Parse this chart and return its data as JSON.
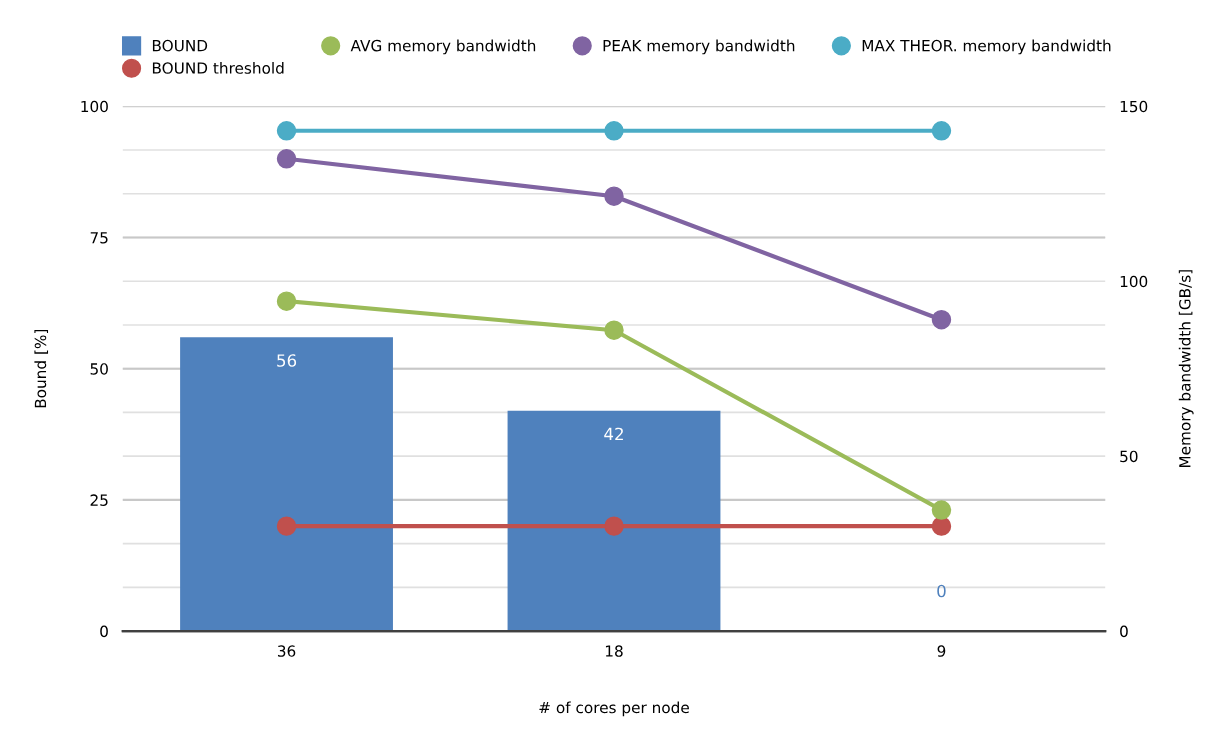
{
  "chart_data": {
    "type": "bar",
    "categories": [
      "36",
      "18",
      "9"
    ],
    "xlabel": "# of cores per node",
    "ylabel": "Bound [%]",
    "y2label": "Memory bandwidth [GB/s]",
    "ylim": [
      0,
      100
    ],
    "yticks": [
      0,
      25,
      50,
      75,
      100
    ],
    "y2lim": [
      0,
      150
    ],
    "y2ticks": [
      0,
      {
        "value": 12.5,
        "label": null
      },
      {
        "value": 25,
        "label": null
      },
      {
        "value": 37.5,
        "label": null
      },
      50,
      {
        "value": 62.5,
        "label": null
      },
      {
        "value": 75,
        "label": null
      },
      {
        "value": 87.5,
        "label": null
      },
      100,
      {
        "value": 112.5,
        "label": null
      },
      {
        "value": 125,
        "label": null
      },
      {
        "value": 137.5,
        "label": null
      },
      150
    ],
    "grid": true,
    "legend": "top",
    "marker": "circle",
    "series": [
      {
        "name": "BOUND",
        "color": "#4f81bd",
        "values": [
          56,
          42,
          0
        ],
        "value_labels": [
          "56",
          "42",
          "0"
        ]
      },
      {
        "name": "BOUND threshold",
        "type": "line",
        "color": "#c0504d",
        "values": [
          20,
          20,
          20
        ]
      },
      {
        "name": "AVG memory bandwidth",
        "type": "line",
        "axis": "y2",
        "color": "#9bbb59",
        "values": [
          94.3,
          86,
          34.6
        ]
      },
      {
        "name": "PEAK memory bandwidth",
        "type": "line",
        "axis": "y2",
        "color": "#8064a2",
        "values": [
          135,
          124.3,
          89
        ]
      },
      {
        "name": "MAX THEOR. memory bandwidth",
        "type": "line",
        "axis": "y2",
        "color": "#4bacc6",
        "values": [
          143,
          143,
          143
        ]
      }
    ]
  }
}
